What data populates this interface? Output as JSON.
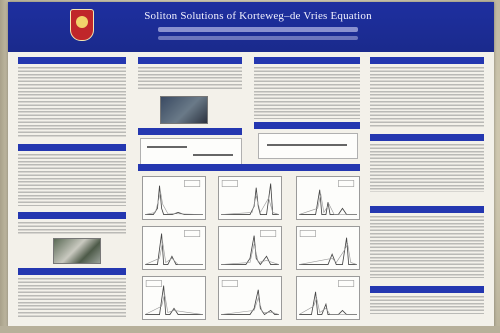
{
  "poster": {
    "title": "Soliton Solutions of Korteweg–de Vries Equation"
  },
  "colors": {
    "header_blue": "#1a2a8c",
    "section_blue": "#2437b0",
    "poster_bg": "#f3f1ea",
    "crest_red": "#c0262a"
  }
}
